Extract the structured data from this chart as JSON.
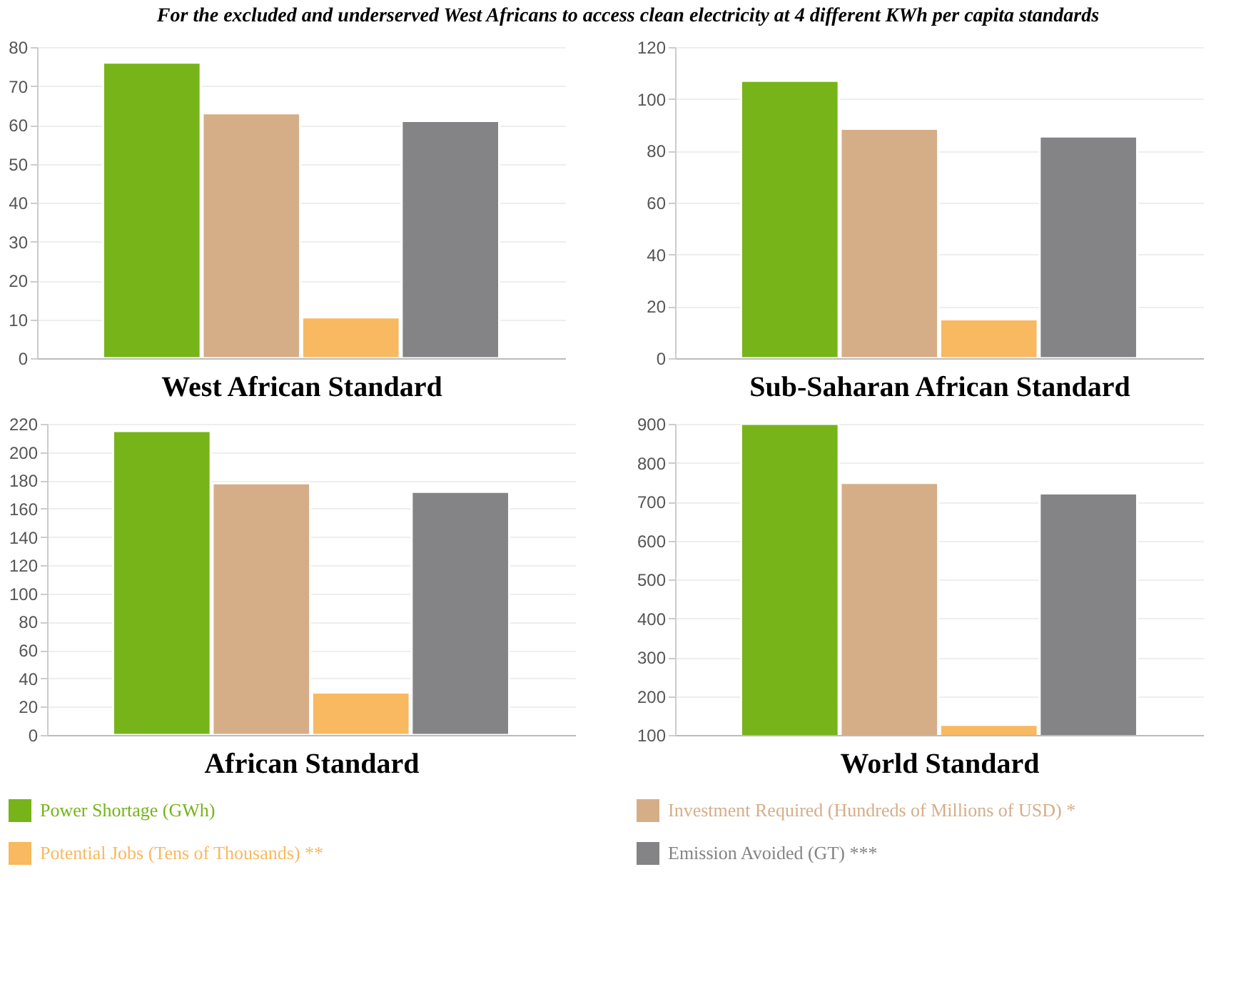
{
  "chart_data": [
    {
      "type": "bar",
      "title": "For the excluded and underserved West Africans to access clean electricity at 4 different KWh per capita standards",
      "xlabel": "West African Standard",
      "categories": [
        null
      ],
      "ylim": [
        0,
        80
      ],
      "yticks": [
        0,
        10,
        20,
        30,
        40,
        50,
        60,
        70,
        80
      ],
      "grid": "y",
      "legend": "bottom",
      "series": [
        {
          "name": "Power Shortage (GWh)",
          "color": "#76b41a",
          "values": [
            76
          ]
        },
        {
          "name": "Investment Required (Hundreds of Millions of USD) *",
          "color": "#d5ae88",
          "values": [
            63
          ]
        },
        {
          "name": "Potential Jobs (Tens of Thousands) **",
          "color": "#f8b960",
          "values": [
            10.5
          ]
        },
        {
          "name": "Emission Avoided (GT) ***",
          "color": "#848486",
          "values": [
            61
          ]
        }
      ]
    },
    {
      "type": "bar",
      "xlabel": "Sub-Saharan African Standard",
      "categories": [
        null
      ],
      "ylim": [
        0,
        120
      ],
      "yticks": [
        0,
        20,
        40,
        60,
        80,
        100,
        120
      ],
      "grid": "y",
      "series": [
        {
          "color": "#76b41a",
          "values": [
            107
          ]
        },
        {
          "color": "#d5ae88",
          "values": [
            88.5
          ]
        },
        {
          "color": "#f8b960",
          "values": [
            15
          ]
        },
        {
          "color": "#848486",
          "values": [
            85.5
          ]
        }
      ]
    },
    {
      "type": "bar",
      "xlabel": "African Standard",
      "categories": [
        null
      ],
      "ylim": [
        0,
        220
      ],
      "yticks": [
        0,
        20,
        40,
        60,
        80,
        100,
        120,
        140,
        160,
        180,
        200,
        220
      ],
      "grid": "y",
      "series": [
        {
          "color": "#76b41a",
          "values": [
            215
          ]
        },
        {
          "color": "#d5ae88",
          "values": [
            178
          ]
        },
        {
          "color": "#f8b960",
          "values": [
            30
          ]
        },
        {
          "color": "#848486",
          "values": [
            172
          ]
        }
      ]
    },
    {
      "type": "bar",
      "xlabel": "World Standard",
      "categories": [
        null
      ],
      "ylim": [
        100,
        900
      ],
      "yticks": [
        100,
        200,
        300,
        400,
        500,
        600,
        700,
        800,
        900
      ],
      "grid": "y",
      "series": [
        {
          "color": "#76b41a",
          "values": [
            900
          ]
        },
        {
          "color": "#d5ae88",
          "values": [
            748
          ]
        },
        {
          "color": "#f8b960",
          "values": [
            126
          ]
        },
        {
          "color": "#848486",
          "values": [
            721
          ]
        }
      ]
    }
  ]
}
